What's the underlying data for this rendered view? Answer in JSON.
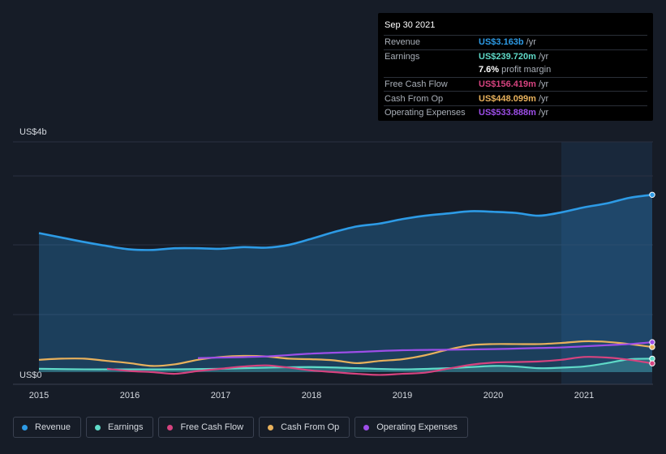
{
  "tooltip": {
    "date": "Sep 30 2021",
    "rows": [
      {
        "label": "Revenue",
        "value": "US$3.163b",
        "unit": "/yr",
        "color": "#2d9be6"
      },
      {
        "label": "Earnings",
        "value": "US$239.720m",
        "unit": "/yr",
        "color": "#5fdac8"
      },
      {
        "label": "",
        "value": "7.6%",
        "unit": "profit margin",
        "color": "#ffffff"
      },
      {
        "label": "Free Cash Flow",
        "value": "US$156.419m",
        "unit": "/yr",
        "color": "#d6437f"
      },
      {
        "label": "Cash From Op",
        "value": "US$448.099m",
        "unit": "/yr",
        "color": "#e8b15c"
      },
      {
        "label": "Operating Expenses",
        "value": "US$533.888m",
        "unit": "/yr",
        "color": "#9d4ee8"
      }
    ]
  },
  "legend": [
    {
      "label": "Revenue",
      "color": "#2d9be6"
    },
    {
      "label": "Earnings",
      "color": "#5fdac8"
    },
    {
      "label": "Free Cash Flow",
      "color": "#d6437f"
    },
    {
      "label": "Cash From Op",
      "color": "#e8b15c"
    },
    {
      "label": "Operating Expenses",
      "color": "#9d4ee8"
    }
  ],
  "chart_data": {
    "type": "area",
    "y_top_label": "US$4b",
    "y_bottom_label": "US$0",
    "ylim": [
      0,
      3.5
    ],
    "xlim": [
      2015.0,
      2021.75
    ],
    "x_ticks": [
      "2015",
      "2016",
      "2017",
      "2018",
      "2019",
      "2020",
      "2021"
    ],
    "series": [
      {
        "name": "Revenue",
        "color": "#2d9be6",
        "unit": "US$b",
        "x": [
          2015.0,
          2015.25,
          2015.5,
          2015.75,
          2016.0,
          2016.25,
          2016.5,
          2016.75,
          2017.0,
          2017.25,
          2017.5,
          2017.75,
          2018.0,
          2018.25,
          2018.5,
          2018.75,
          2019.0,
          2019.25,
          2019.5,
          2019.75,
          2020.0,
          2020.25,
          2020.5,
          2020.75,
          2021.0,
          2021.25,
          2021.5,
          2021.75
        ],
        "values": [
          2.48,
          2.4,
          2.32,
          2.25,
          2.19,
          2.18,
          2.21,
          2.21,
          2.2,
          2.23,
          2.22,
          2.27,
          2.38,
          2.5,
          2.6,
          2.65,
          2.73,
          2.79,
          2.83,
          2.87,
          2.86,
          2.84,
          2.79,
          2.85,
          2.94,
          3.01,
          3.11,
          3.163
        ]
      },
      {
        "name": "Earnings",
        "color": "#5fdac8",
        "unit": "US$b",
        "x": [
          2015.0,
          2015.5,
          2016.0,
          2016.5,
          2017.0,
          2017.5,
          2018.0,
          2018.5,
          2019.0,
          2019.5,
          2020.0,
          2020.25,
          2020.5,
          2020.75,
          2021.0,
          2021.25,
          2021.5,
          2021.75
        ],
        "values": [
          0.06,
          0.05,
          0.05,
          0.05,
          0.06,
          0.08,
          0.09,
          0.07,
          0.05,
          0.07,
          0.11,
          0.1,
          0.07,
          0.08,
          0.1,
          0.16,
          0.23,
          0.2397
        ]
      },
      {
        "name": "Free Cash Flow",
        "color": "#d6437f",
        "unit": "US$b",
        "x": [
          2015.75,
          2016.0,
          2016.25,
          2016.5,
          2016.75,
          2017.0,
          2017.25,
          2017.5,
          2017.75,
          2018.0,
          2018.25,
          2018.5,
          2018.75,
          2019.0,
          2019.25,
          2019.5,
          2019.75,
          2020.0,
          2020.25,
          2020.5,
          2020.75,
          2021.0,
          2021.25,
          2021.5,
          2021.75
        ],
        "values": [
          0.06,
          0.02,
          0.0,
          -0.03,
          0.02,
          0.06,
          0.1,
          0.12,
          0.08,
          0.03,
          0.0,
          -0.03,
          -0.05,
          -0.03,
          -0.01,
          0.06,
          0.13,
          0.17,
          0.18,
          0.19,
          0.22,
          0.27,
          0.26,
          0.22,
          0.156
        ]
      },
      {
        "name": "Cash From Op",
        "color": "#e8b15c",
        "unit": "US$b",
        "x": [
          2015.0,
          2015.25,
          2015.5,
          2015.75,
          2016.0,
          2016.25,
          2016.5,
          2016.75,
          2017.0,
          2017.25,
          2017.5,
          2017.75,
          2018.0,
          2018.25,
          2018.5,
          2018.75,
          2019.0,
          2019.25,
          2019.5,
          2019.75,
          2020.0,
          2020.25,
          2020.5,
          2020.75,
          2021.0,
          2021.25,
          2021.5,
          2021.75
        ],
        "values": [
          0.22,
          0.24,
          0.24,
          0.2,
          0.16,
          0.11,
          0.14,
          0.22,
          0.27,
          0.29,
          0.28,
          0.24,
          0.23,
          0.21,
          0.16,
          0.2,
          0.23,
          0.3,
          0.4,
          0.48,
          0.5,
          0.5,
          0.5,
          0.52,
          0.55,
          0.54,
          0.5,
          0.448
        ]
      },
      {
        "name": "Operating Expenses",
        "color": "#9d4ee8",
        "unit": "US$b",
        "x": [
          2016.75,
          2017.0,
          2017.5,
          2018.0,
          2018.5,
          2019.0,
          2019.5,
          2020.0,
          2020.5,
          2020.75,
          2021.0,
          2021.25,
          2021.5,
          2021.75
        ],
        "values": [
          0.25,
          0.26,
          0.28,
          0.33,
          0.36,
          0.39,
          0.4,
          0.41,
          0.43,
          0.44,
          0.46,
          0.48,
          0.5,
          0.534
        ]
      }
    ]
  }
}
